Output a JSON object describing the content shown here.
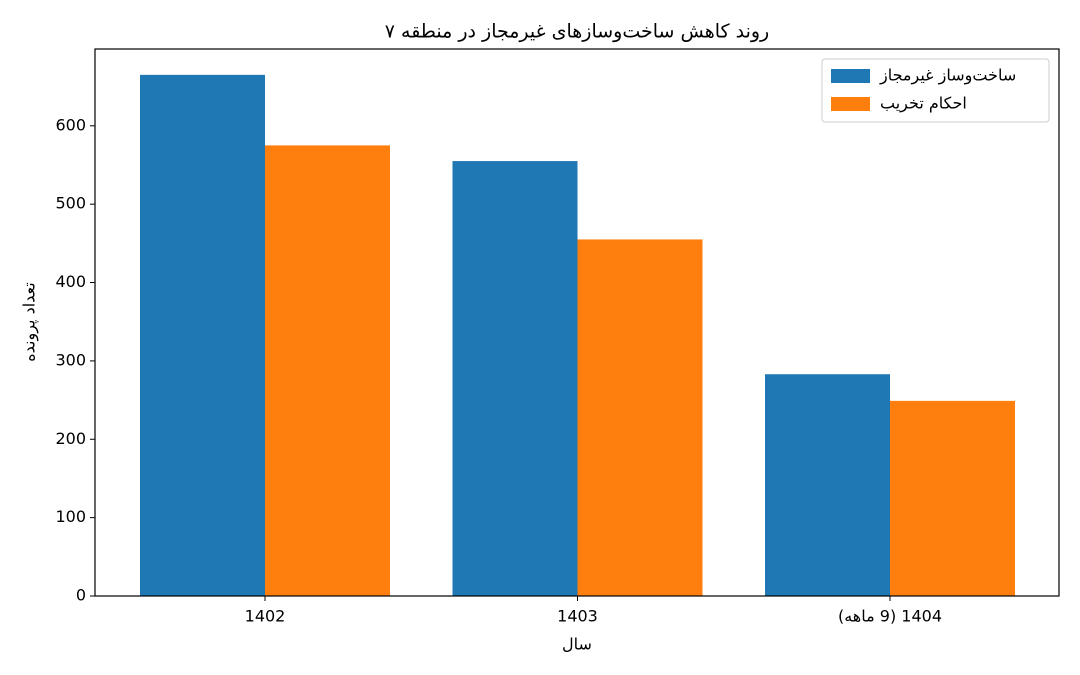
{
  "chart_data": {
    "type": "bar",
    "title": "روند کاهش ساخت‌وسازهای غیرمجاز در منطقه ۷",
    "x_label": "سال",
    "y_label": "تعداد پرونده",
    "categories": [
      "1402",
      "1403",
      "1404 (9 ماهه)"
    ],
    "series": [
      {
        "name": "ساخت‌وساز غیرمجاز",
        "color": "#1f77b4",
        "values": [
          665,
          555,
          283
        ]
      },
      {
        "name": "احکام تخریب",
        "color": "#ff7f0e",
        "values": [
          575,
          455,
          249
        ]
      }
    ],
    "ylim": [
      0,
      698
    ],
    "yticks": [
      0,
      100,
      200,
      300,
      400,
      500,
      600
    ],
    "legend": "upper right"
  }
}
